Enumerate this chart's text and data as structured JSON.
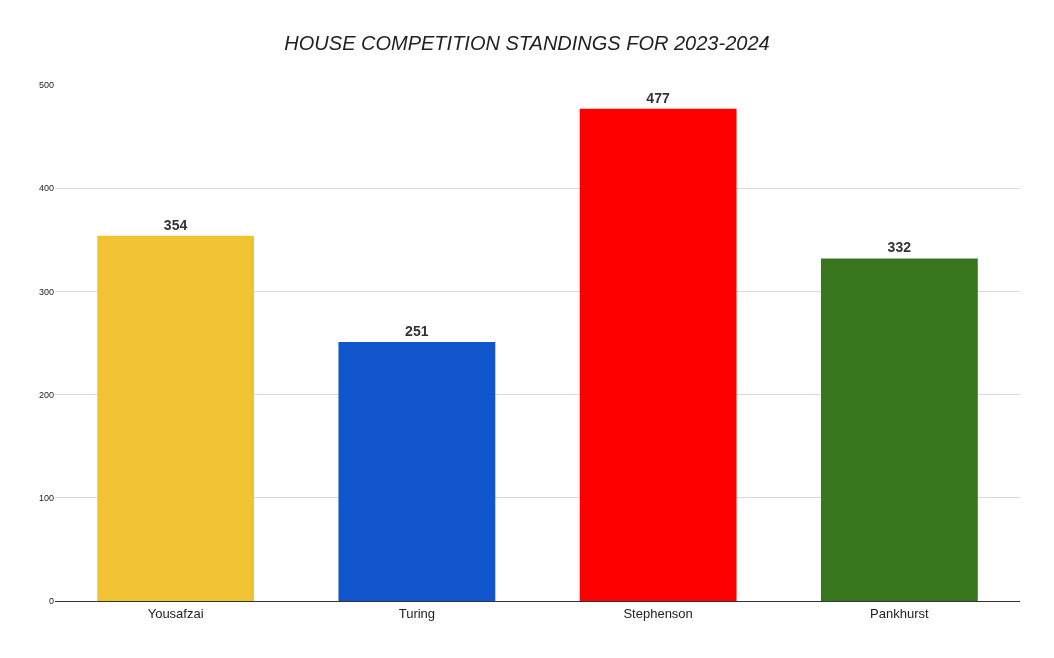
{
  "chart_data": {
    "type": "bar",
    "title": "HOUSE COMPETITION STANDINGS FOR 2023-2024",
    "categories": [
      "Yousafzai",
      "Turing",
      "Stephenson",
      "Pankhurst"
    ],
    "values": [
      354,
      251,
      477,
      332
    ],
    "colors": [
      "#f1c232",
      "#1155cc",
      "#ff0000",
      "#38761d"
    ],
    "ylim": [
      0,
      500
    ],
    "yticks": [
      0,
      100,
      200,
      300,
      400,
      500
    ],
    "grid": "y",
    "data_labels": true,
    "legend": false
  }
}
